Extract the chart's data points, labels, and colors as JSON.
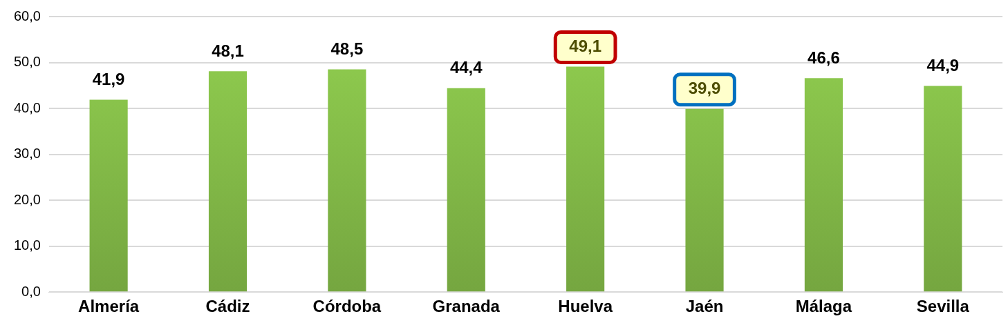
{
  "chart_data": {
    "type": "bar",
    "categories": [
      "Almería",
      "Cádiz",
      "Córdoba",
      "Granada",
      "Huelva",
      "Jaén",
      "Málaga",
      "Sevilla"
    ],
    "values": [
      41.9,
      48.1,
      48.5,
      44.4,
      49.1,
      39.9,
      46.6,
      44.9
    ],
    "value_labels": [
      "41,9",
      "48,1",
      "48,5",
      "44,4",
      "49,1",
      "39,9",
      "46,6",
      "44,9"
    ],
    "color": "#92d050",
    "ylim": [
      0,
      60
    ],
    "yticks": [
      {
        "value": 0,
        "label": "0,0"
      },
      {
        "value": 10,
        "label": "10,0"
      },
      {
        "value": 20,
        "label": "20,0"
      },
      {
        "value": 30,
        "label": "30,0"
      },
      {
        "value": 40,
        "label": "40,0"
      },
      {
        "value": 50,
        "label": "50,0"
      },
      {
        "value": 60,
        "label": "60,0"
      }
    ],
    "grid": "y",
    "legend": false
  }
}
